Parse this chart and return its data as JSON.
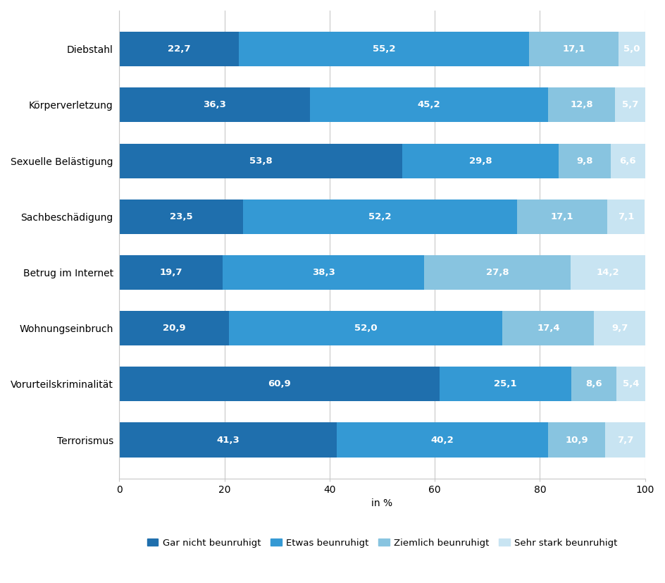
{
  "categories": [
    "Diebstahl",
    "Körperverletzung",
    "Sexuelle Belästigung",
    "Sachbeschädigung",
    "Betrug im Internet",
    "Wohnungseinbruch",
    "Vorurteilskriminalität",
    "Terrorismus"
  ],
  "series": [
    {
      "label": "Gar nicht beunruhigt",
      "color": "#1f6fad",
      "values": [
        22.7,
        36.3,
        53.8,
        23.5,
        19.7,
        20.9,
        60.9,
        41.3
      ]
    },
    {
      "label": "Etwas beunruhigt",
      "color": "#3499d4",
      "values": [
        55.2,
        45.2,
        29.8,
        52.2,
        38.3,
        52.0,
        25.1,
        40.2
      ]
    },
    {
      "label": "Ziemlich beunruhigt",
      "color": "#88c4e0",
      "values": [
        17.1,
        12.8,
        9.8,
        17.1,
        27.8,
        17.4,
        8.6,
        10.9
      ]
    },
    {
      "label": "Sehr stark beunruhigt",
      "color": "#c8e4f2",
      "values": [
        5.0,
        5.7,
        6.6,
        7.1,
        14.2,
        9.7,
        5.4,
        7.7
      ]
    }
  ],
  "xlabel": "in %",
  "xlim": [
    0,
    100
  ],
  "xticks": [
    0,
    20,
    40,
    60,
    80,
    100
  ],
  "bar_height": 0.62,
  "figure_facecolor": "#ffffff",
  "axes_facecolor": "#ffffff",
  "grid_color": "#c8c8c8",
  "text_color": "#ffffff",
  "label_color": "#000000",
  "font_size_bar": 9.5,
  "font_size_axis": 10,
  "font_size_legend": 9.5,
  "figsize": [
    9.44,
    8.27
  ],
  "dpi": 100
}
